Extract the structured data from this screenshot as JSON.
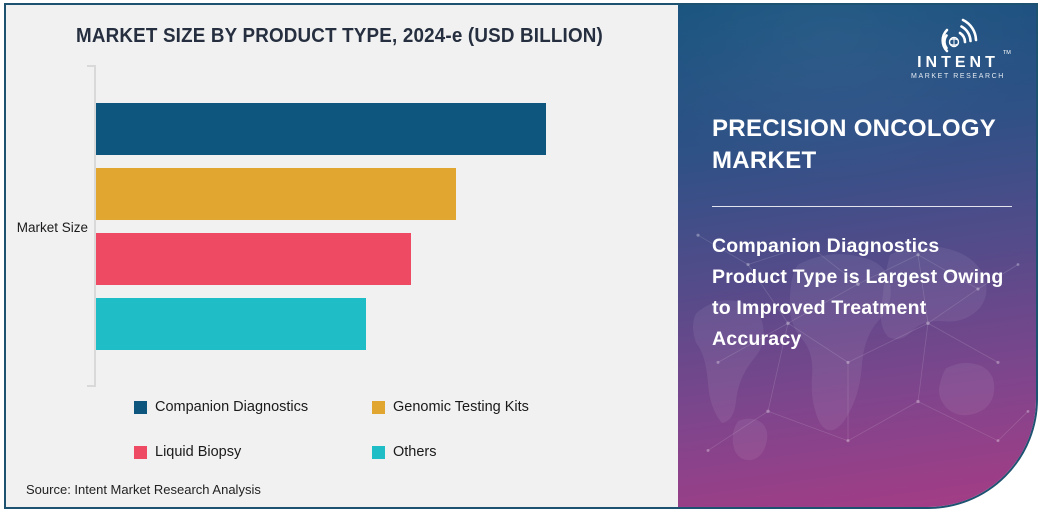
{
  "source_note": "Source: Intent Market Research Analysis",
  "chart_data": {
    "type": "bar",
    "orientation": "horizontal",
    "title": "MARKET SIZE BY PRODUCT TYPE, 2024-e (USD BILLION)",
    "ylabel": "Market Size",
    "unit": "USD Billion",
    "categories": [
      "Companion Diagnostics",
      "Genomic Testing Kits",
      "Liquid Biopsy",
      "Others"
    ],
    "values_relative": [
      1.0,
      0.8,
      0.7,
      0.6
    ],
    "value_axis_labels_shown": false,
    "data_labels_shown": false,
    "grid": false,
    "legend_position": "bottom",
    "colors": [
      "#0f567e",
      "#e0a62f",
      "#ef4a64",
      "#1fbdc5"
    ]
  },
  "side_panel": {
    "title": "PRECISION ONCOLOGY\nMARKET",
    "description": "Companion Diagnostics\nProduct Type is Largest Owing\nto Improved Treatment\nAccuracy",
    "gradient_top": "#17537e",
    "gradient_bottom": "#a63c85"
  },
  "logo": {
    "brand": "INTENT",
    "tagline": "MARKET RESEARCH",
    "trademark": "TM",
    "icon": "signal-waves-globe-icon"
  }
}
